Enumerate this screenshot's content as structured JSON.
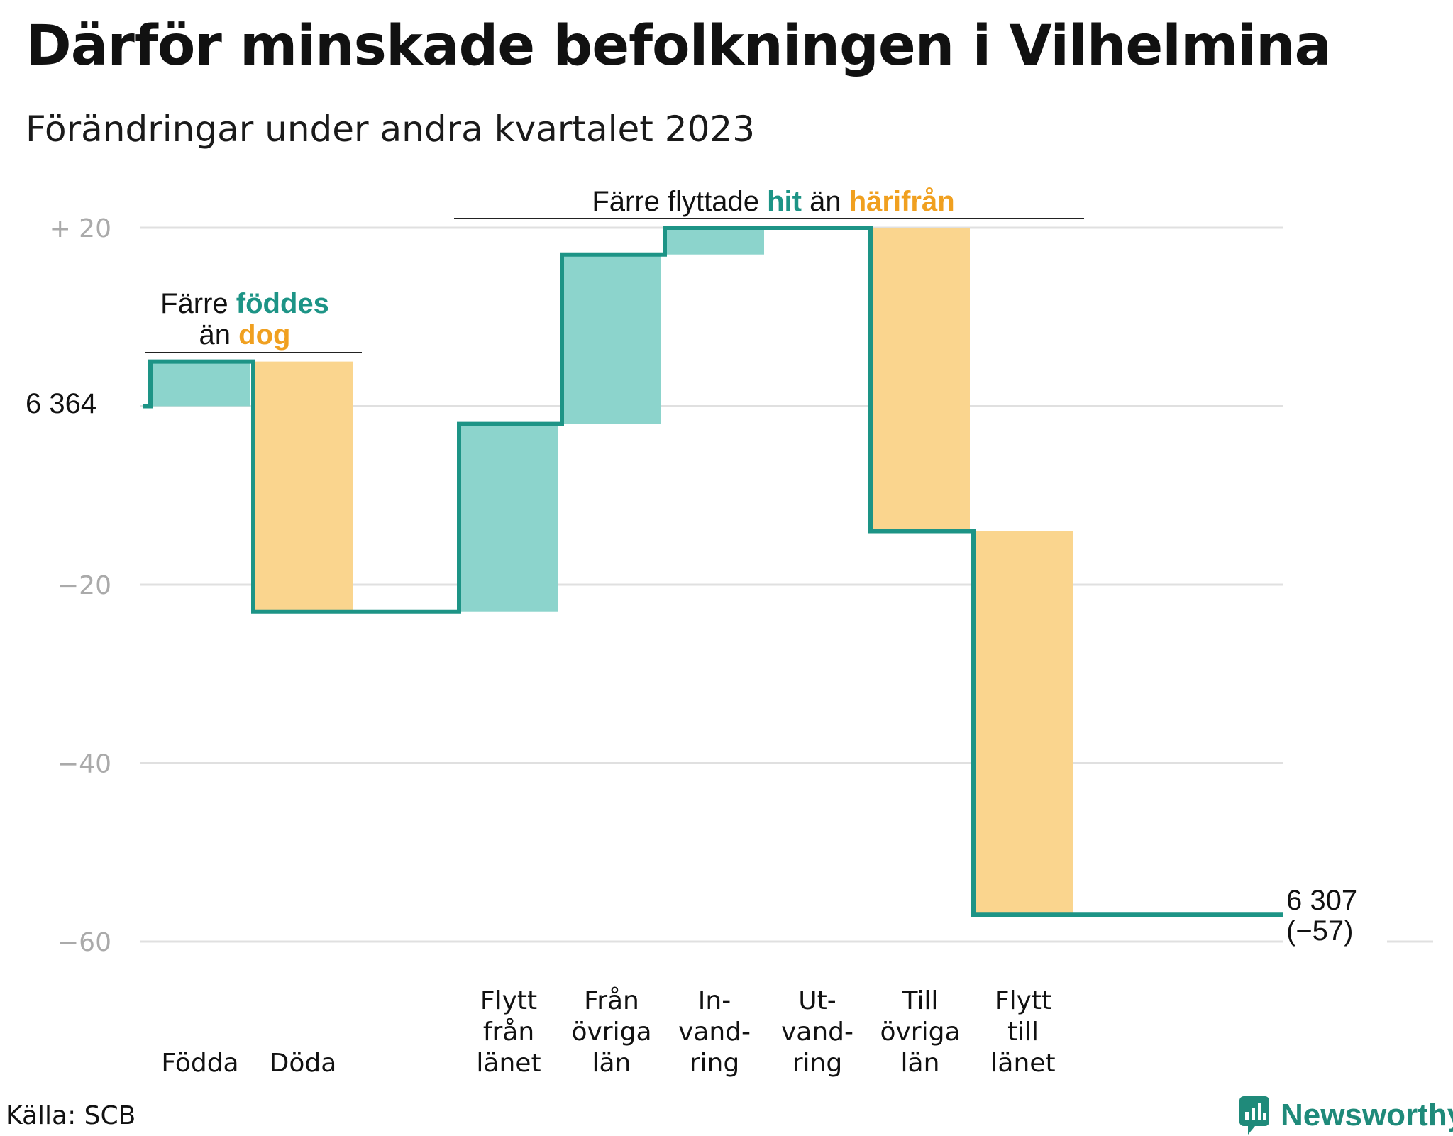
{
  "title": "Därför minskade befolkningen i Vilhelmina",
  "subtitle": "Förändringar under andra kvartalet 2023",
  "source": "Källa: SCB",
  "brand": "Newsworthy",
  "colors": {
    "increase": "#8cd4cc",
    "decrease": "#fad58e",
    "line": "#1d9486",
    "teal_text": "#1d9486",
    "orange_text": "#f0a020",
    "grid": "#e0e0e0",
    "axis_text": "#aaaaaa"
  },
  "chart_data": {
    "type": "waterfall",
    "start_value": 6364,
    "start_label": "6 364",
    "end_label": "6 307",
    "end_change_label": "(−57)",
    "ylim": [
      -60,
      20
    ],
    "yticks": [
      {
        "value": 20,
        "label": "+  20"
      },
      {
        "value": 0,
        "label": ""
      },
      {
        "value": -20,
        "label": "−20"
      },
      {
        "value": -40,
        "label": "−40"
      },
      {
        "value": -60,
        "label": "−60"
      }
    ],
    "steps": [
      {
        "label_lines": [
          "Födda"
        ],
        "change": 5,
        "kind": "increase"
      },
      {
        "label_lines": [
          "Döda"
        ],
        "change": -28,
        "kind": "decrease"
      },
      {
        "label_lines": [],
        "change": 0,
        "kind": "none"
      },
      {
        "label_lines": [
          "Flytt",
          "från",
          "länet"
        ],
        "change": 21,
        "kind": "increase"
      },
      {
        "label_lines": [
          "Från",
          "övriga",
          "län"
        ],
        "change": 19,
        "kind": "increase"
      },
      {
        "label_lines": [
          "In-",
          "vand-",
          "ring"
        ],
        "change": 3,
        "kind": "increase"
      },
      {
        "label_lines": [
          "Ut-",
          "vand-",
          "ring"
        ],
        "change": 0,
        "kind": "none"
      },
      {
        "label_lines": [
          "Till",
          "övriga",
          "län"
        ],
        "change": -34,
        "kind": "decrease"
      },
      {
        "label_lines": [
          "Flytt",
          "till",
          "länet"
        ],
        "change": -43,
        "kind": "decrease"
      }
    ],
    "annotations": [
      {
        "lines": [
          [
            {
              "text": "Färre ",
              "style": "plain"
            },
            {
              "text": "föddes",
              "style": "teal"
            }
          ],
          [
            {
              "text": "än ",
              "style": "plain"
            },
            {
              "text": "dog",
              "style": "orange"
            }
          ]
        ]
      },
      {
        "lines": [
          [
            {
              "text": "Färre flyttade ",
              "style": "plain"
            },
            {
              "text": "hit",
              "style": "teal"
            },
            {
              "text": " än ",
              "style": "plain"
            },
            {
              "text": "härifrån",
              "style": "orange"
            }
          ]
        ]
      }
    ]
  }
}
